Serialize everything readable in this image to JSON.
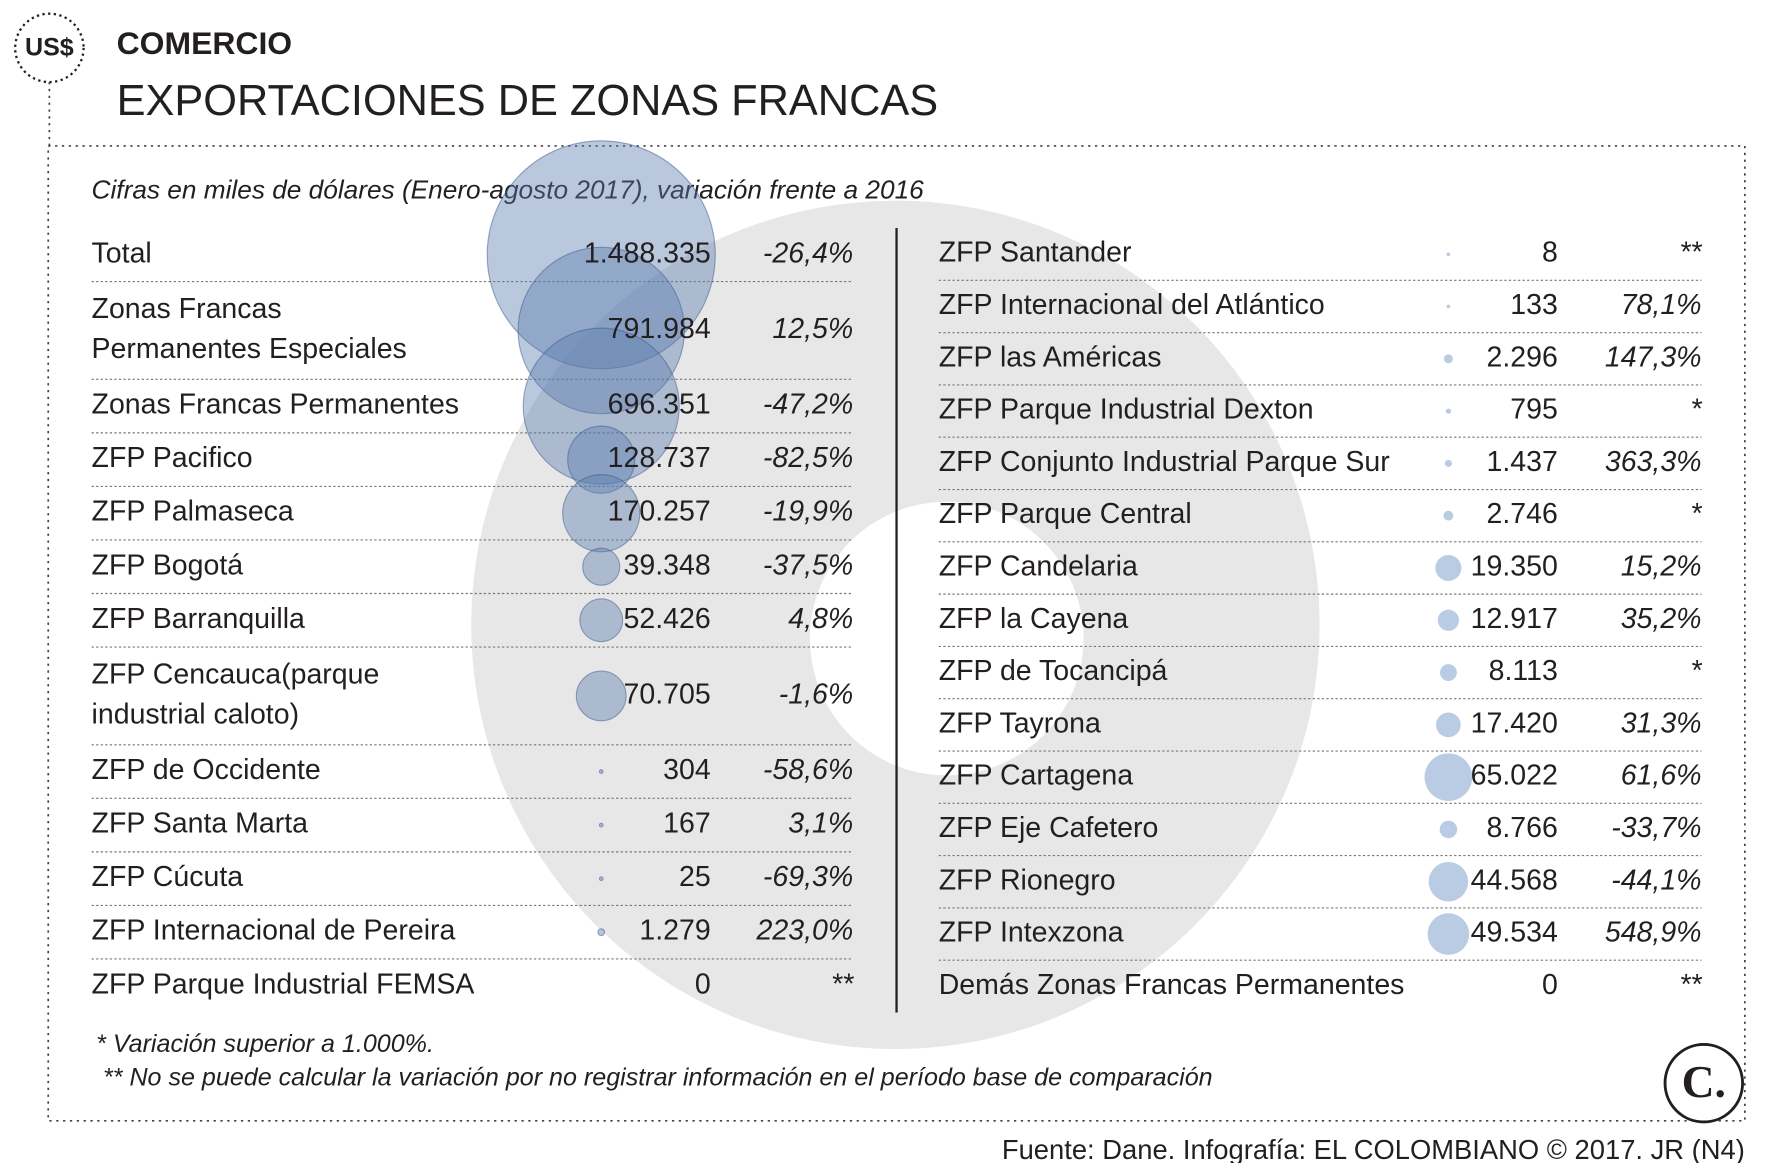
{
  "header": {
    "icon": "US$",
    "section": "COMERCIO",
    "title": "EXPORTACIONES DE ZONAS FRANCAS",
    "subtitle": "Cifras en miles de dólares (Enero-agosto 2017), variación frente a 2016"
  },
  "table": {
    "left": [
      {
        "label": [
          "Total"
        ],
        "value": 1488335,
        "value_label": "1.488.335",
        "variation": "-26,4%"
      },
      {
        "label": [
          "Zonas Francas",
          "Permanentes Especiales"
        ],
        "value": 791984,
        "value_label": "791.984",
        "variation": "12,5%"
      },
      {
        "label": [
          "Zonas Francas Permanentes"
        ],
        "value": 696351,
        "value_label": "696.351",
        "variation": "-47,2%"
      },
      {
        "label": [
          "ZFP Pacifico"
        ],
        "value": 128737,
        "value_label": "128.737",
        "variation": "-82,5%"
      },
      {
        "label": [
          "ZFP Palmaseca"
        ],
        "value": 170257,
        "value_label": "170.257",
        "variation": "-19,9%"
      },
      {
        "label": [
          "ZFP Bogotá"
        ],
        "value": 39348,
        "value_label": "39.348",
        "variation": "-37,5%"
      },
      {
        "label": [
          "ZFP Barranquilla"
        ],
        "value": 52426,
        "value_label": "52.426",
        "variation": "4,8%"
      },
      {
        "label": [
          "ZFP Cencauca(parque",
          "industrial caloto)"
        ],
        "value": 70705,
        "value_label": "70.705",
        "variation": "-1,6%"
      },
      {
        "label": [
          "ZFP de Occidente"
        ],
        "value": 304,
        "value_label": "304",
        "variation": "-58,6%"
      },
      {
        "label": [
          "ZFP Santa Marta"
        ],
        "value": 167,
        "value_label": "167",
        "variation": "3,1%"
      },
      {
        "label": [
          "ZFP Cúcuta"
        ],
        "value": 25,
        "value_label": "25",
        "variation": "-69,3%"
      },
      {
        "label": [
          "ZFP Internacional de Pereira"
        ],
        "value": 1279,
        "value_label": "1.279",
        "variation": "223,0%"
      },
      {
        "label": [
          "ZFP Parque Industrial FEMSA"
        ],
        "value": 0,
        "value_label": "0",
        "variation": "**"
      }
    ],
    "right": [
      {
        "label": [
          "ZFP Santander"
        ],
        "value": 8,
        "value_label": "8",
        "variation": "**"
      },
      {
        "label": [
          "ZFP Internacional del Atlántico"
        ],
        "value": 133,
        "value_label": "133",
        "variation": "78,1%"
      },
      {
        "label": [
          "ZFP las Américas"
        ],
        "value": 2296,
        "value_label": "2.296",
        "variation": "147,3%"
      },
      {
        "label": [
          "ZFP Parque Industrial Dexton"
        ],
        "value": 795,
        "value_label": "795",
        "variation": "*"
      },
      {
        "label": [
          "ZFP Conjunto Industrial Parque Sur"
        ],
        "value": 1437,
        "value_label": "1.437",
        "variation": "363,3%"
      },
      {
        "label": [
          "ZFP Parque Central"
        ],
        "value": 2746,
        "value_label": "2.746",
        "variation": "*"
      },
      {
        "label": [
          "ZFP Candelaria"
        ],
        "value": 19350,
        "value_label": "19.350",
        "variation": "15,2%"
      },
      {
        "label": [
          "ZFP la Cayena"
        ],
        "value": 12917,
        "value_label": "12.917",
        "variation": "35,2%"
      },
      {
        "label": [
          "ZFP de Tocancipá"
        ],
        "value": 8113,
        "value_label": "8.113",
        "variation": "*"
      },
      {
        "label": [
          "ZFP Tayrona"
        ],
        "value": 17420,
        "value_label": "17.420",
        "variation": "31,3%"
      },
      {
        "label": [
          "ZFP Cartagena"
        ],
        "value": 65022,
        "value_label": "65.022",
        "variation": "61,6%"
      },
      {
        "label": [
          "ZFP Eje Cafetero"
        ],
        "value": 8766,
        "value_label": "8.766",
        "variation": "-33,7%"
      },
      {
        "label": [
          "ZFP Rionegro"
        ],
        "value": 44568,
        "value_label": "44.568",
        "variation": "-44,1%"
      },
      {
        "label": [
          "ZFP Intexzona"
        ],
        "value": 49534,
        "value_label": "49.534",
        "variation": "548,9%"
      },
      {
        "label": [
          "Demás Zonas Francas Permanentes"
        ],
        "value": 0,
        "value_label": "0",
        "variation": "**"
      }
    ]
  },
  "footnotes": [
    "* Variación superior a 1.000%.",
    "**  No se puede calcular la variación por no registrar información en el período base de comparación"
  ],
  "source": "Fuente: Dane. Infografía: EL COLOMBIANO © 2017. JR (N4)",
  "logo": "C."
}
